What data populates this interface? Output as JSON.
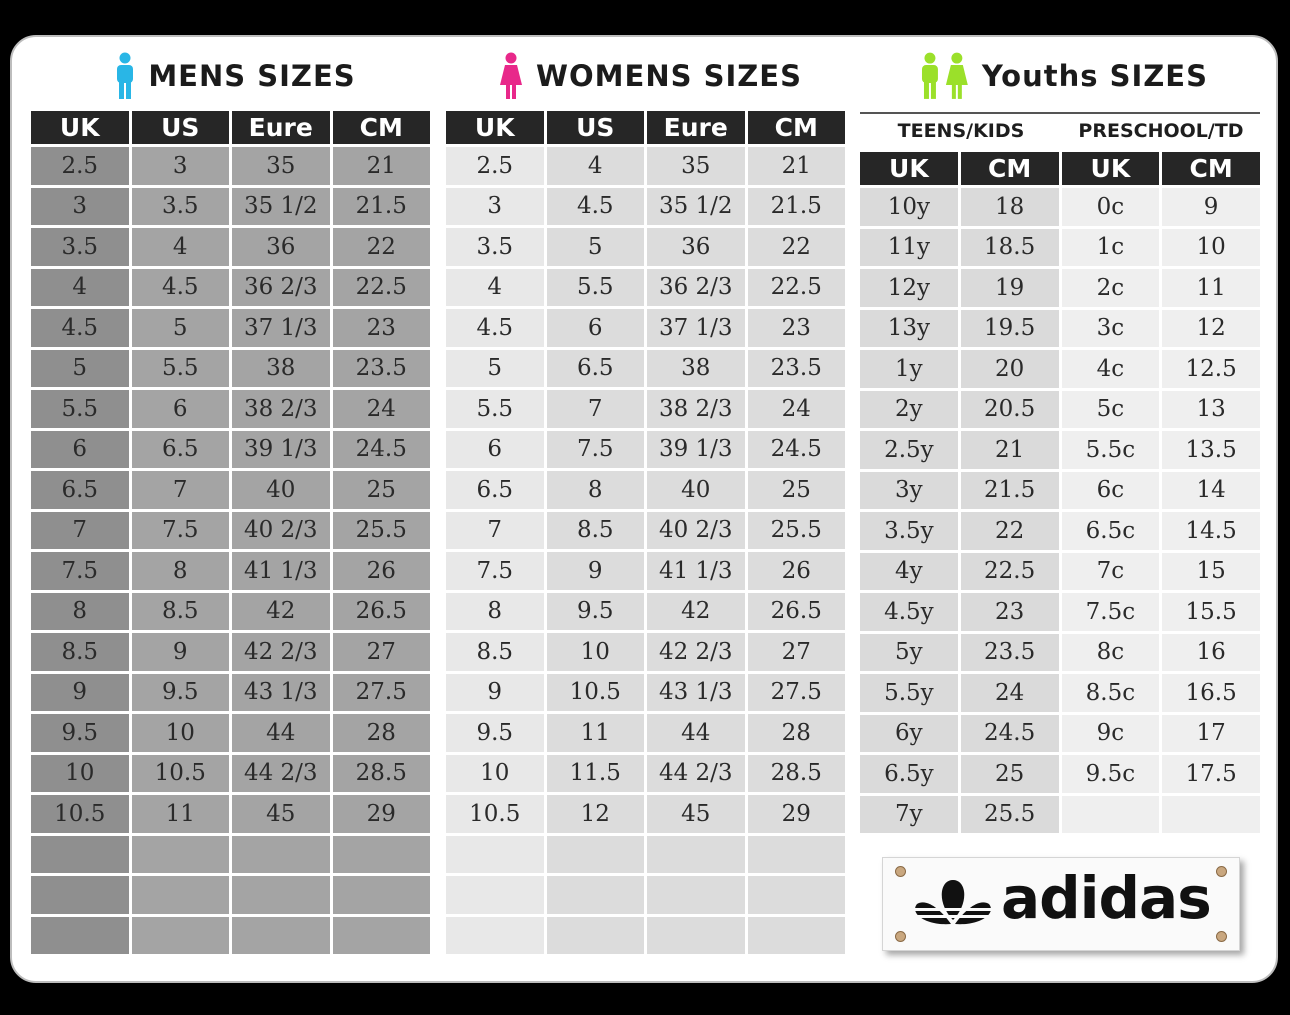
{
  "mens": {
    "title": "MENS  SIZES",
    "headers": [
      "UK",
      "US",
      "Eure",
      "CM"
    ],
    "rows": [
      [
        "2.5",
        "3",
        "35",
        "21"
      ],
      [
        "3",
        "3.5",
        "35 1/2",
        "21.5"
      ],
      [
        "3.5",
        "4",
        "36",
        "22"
      ],
      [
        "4",
        "4.5",
        "36 2/3",
        "22.5"
      ],
      [
        "4.5",
        "5",
        "37 1/3",
        "23"
      ],
      [
        "5",
        "5.5",
        "38",
        "23.5"
      ],
      [
        "5.5",
        "6",
        "38 2/3",
        "24"
      ],
      [
        "6",
        "6.5",
        "39 1/3",
        "24.5"
      ],
      [
        "6.5",
        "7",
        "40",
        "25"
      ],
      [
        "7",
        "7.5",
        "40 2/3",
        "25.5"
      ],
      [
        "7.5",
        "8",
        "41 1/3",
        "26"
      ],
      [
        "8",
        "8.5",
        "42",
        "26.5"
      ],
      [
        "8.5",
        "9",
        "42 2/3",
        "27"
      ],
      [
        "9",
        "9.5",
        "43 1/3",
        "27.5"
      ],
      [
        "9.5",
        "10",
        "44",
        "28"
      ],
      [
        "10",
        "10.5",
        "44 2/3",
        "28.5"
      ],
      [
        "10.5",
        "11",
        "45",
        "29"
      ],
      [
        "",
        "",
        "",
        ""
      ],
      [
        "",
        "",
        "",
        ""
      ],
      [
        "",
        "",
        "",
        ""
      ]
    ]
  },
  "womens": {
    "title": "WOMENS  SIZES",
    "headers": [
      "UK",
      "US",
      "Eure",
      "CM"
    ],
    "rows": [
      [
        "2.5",
        "4",
        "35",
        "21"
      ],
      [
        "3",
        "4.5",
        "35 1/2",
        "21.5"
      ],
      [
        "3.5",
        "5",
        "36",
        "22"
      ],
      [
        "4",
        "5.5",
        "36 2/3",
        "22.5"
      ],
      [
        "4.5",
        "6",
        "37  1/3",
        "23"
      ],
      [
        "5",
        "6.5",
        "38",
        "23.5"
      ],
      [
        "5.5",
        "7",
        "38 2/3",
        "24"
      ],
      [
        "6",
        "7.5",
        "39 1/3",
        "24.5"
      ],
      [
        "6.5",
        "8",
        "40",
        "25"
      ],
      [
        "7",
        "8.5",
        "40 2/3",
        "25.5"
      ],
      [
        "7.5",
        "9",
        "41 1/3",
        "26"
      ],
      [
        "8",
        "9.5",
        "42",
        "26.5"
      ],
      [
        "8.5",
        "10",
        "42 2/3",
        "27"
      ],
      [
        "9",
        "10.5",
        "43 1/3",
        "27.5"
      ],
      [
        "9.5",
        "11",
        "44",
        "28"
      ],
      [
        "10",
        "11.5",
        "44 2/3",
        "28.5"
      ],
      [
        "10.5",
        "12",
        "45",
        "29"
      ],
      [
        "",
        "",
        "",
        ""
      ],
      [
        "",
        "",
        "",
        ""
      ],
      [
        "",
        "",
        "",
        ""
      ]
    ]
  },
  "youths": {
    "title": "Youths  SIZES",
    "teens_label": "TEENS/KIDS",
    "preschool_label": "PRESCHOOL/TD",
    "headers": [
      "UK",
      "CM",
      "UK",
      "CM"
    ],
    "rows": [
      [
        "10y",
        "18",
        "0c",
        "9"
      ],
      [
        "11y",
        "18.5",
        "1c",
        "10"
      ],
      [
        "12y",
        "19",
        "2c",
        "11"
      ],
      [
        "13y",
        "19.5",
        "3c",
        "12"
      ],
      [
        "1y",
        "20",
        "4c",
        "12.5"
      ],
      [
        "2y",
        "20.5",
        "5c",
        "13"
      ],
      [
        "2.5y",
        "21",
        "5.5c",
        "13.5"
      ],
      [
        "3y",
        "21.5",
        "6c",
        "14"
      ],
      [
        "3.5y",
        "22",
        "6.5c",
        "14.5"
      ],
      [
        "4y",
        "22.5",
        "7c",
        "15"
      ],
      [
        "4.5y",
        "23",
        "7.5c",
        "15.5"
      ],
      [
        "5y",
        "23.5",
        "8c",
        "16"
      ],
      [
        "5.5y",
        "24",
        "8.5c",
        "16.5"
      ],
      [
        "6y",
        "24.5",
        "9c",
        "17"
      ],
      [
        "6.5y",
        "25",
        "9.5c",
        "17.5"
      ],
      [
        "7y",
        "25.5",
        "",
        ""
      ]
    ]
  },
  "brand": {
    "logo_text": "adidas"
  },
  "colors": {
    "mens_icon": "#29b6e6",
    "womens_icon": "#e8288a",
    "youth_icon": "#9be02a"
  }
}
